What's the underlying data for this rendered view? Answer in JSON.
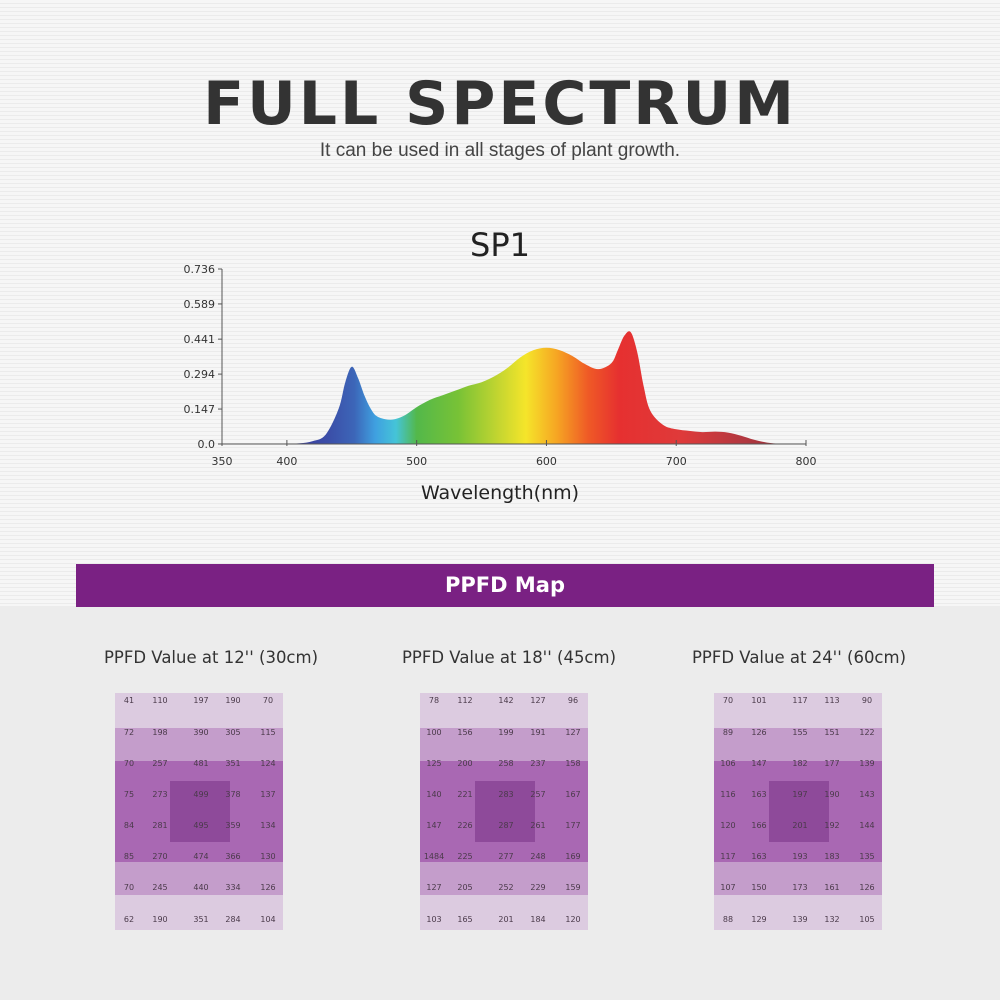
{
  "header": {
    "title": "FULL SPECTRUM",
    "subtitle": "It can be used in all stages of plant growth."
  },
  "colors": {
    "banner": "#7a2183",
    "band_light": "#dccbe0",
    "band_mid": "#c49dcb",
    "band_dark": "#a968b3",
    "center": "#8e4a9a"
  },
  "chart_data": {
    "type": "area",
    "title": "SP1",
    "xlabel": "Wavelength(nm)",
    "ylabel": "",
    "xlim": [
      350,
      800
    ],
    "ylim": [
      0,
      0.736
    ],
    "xticks": [
      "350",
      "400",
      "500",
      "600",
      "700",
      "800"
    ],
    "yticks": [
      "0.736",
      "0.589",
      "0.441",
      "0.294",
      "0.147",
      "0.0"
    ],
    "x": [
      400,
      410,
      420,
      430,
      440,
      445,
      450,
      455,
      460,
      465,
      470,
      480,
      490,
      500,
      510,
      520,
      530,
      540,
      550,
      560,
      570,
      580,
      590,
      600,
      610,
      620,
      630,
      640,
      650,
      655,
      660,
      665,
      670,
      675,
      680,
      690,
      700,
      710,
      720,
      730,
      740,
      750,
      760,
      770,
      780,
      790
    ],
    "y": [
      0.0,
      0.003,
      0.012,
      0.04,
      0.15,
      0.26,
      0.325,
      0.275,
      0.2,
      0.145,
      0.115,
      0.102,
      0.118,
      0.155,
      0.185,
      0.205,
      0.225,
      0.245,
      0.26,
      0.285,
      0.32,
      0.365,
      0.395,
      0.405,
      0.395,
      0.37,
      0.335,
      0.315,
      0.34,
      0.395,
      0.455,
      0.47,
      0.385,
      0.24,
      0.14,
      0.08,
      0.062,
      0.055,
      0.05,
      0.052,
      0.048,
      0.035,
      0.018,
      0.006,
      0.001,
      0.0
    ],
    "legend": "none",
    "grid": false
  },
  "ppfd": {
    "banner_label": "PPFD Map",
    "maps": [
      {
        "title": "PPFD Value at 12'' (30cm)",
        "rows": [
          [
            "41",
            "110",
            "197",
            "190",
            "70"
          ],
          [
            "72",
            "198",
            "390",
            "305",
            "115"
          ],
          [
            "70",
            "257",
            "481",
            "351",
            "124"
          ],
          [
            "75",
            "273",
            "499",
            "378",
            "137"
          ],
          [
            "84",
            "281",
            "495",
            "359",
            "134"
          ],
          [
            "85",
            "270",
            "474",
            "366",
            "130"
          ],
          [
            "70",
            "245",
            "440",
            "334",
            "126"
          ],
          [
            "62",
            "190",
            "351",
            "284",
            "104"
          ]
        ]
      },
      {
        "title": "PPFD Value at 18'' (45cm)",
        "rows": [
          [
            "78",
            "112",
            "142",
            "127",
            "96"
          ],
          [
            "100",
            "156",
            "199",
            "191",
            "127"
          ],
          [
            "125",
            "200",
            "258",
            "237",
            "158"
          ],
          [
            "140",
            "221",
            "283",
            "257",
            "167"
          ],
          [
            "147",
            "226",
            "287",
            "261",
            "177"
          ],
          [
            "1484",
            "225",
            "277",
            "248",
            "169"
          ],
          [
            "127",
            "205",
            "252",
            "229",
            "159"
          ],
          [
            "103",
            "165",
            "201",
            "184",
            "120"
          ]
        ]
      },
      {
        "title": "PPFD Value at 24'' (60cm)",
        "rows": [
          [
            "70",
            "101",
            "117",
            "113",
            "90"
          ],
          [
            "89",
            "126",
            "155",
            "151",
            "122"
          ],
          [
            "106",
            "147",
            "182",
            "177",
            "139"
          ],
          [
            "116",
            "163",
            "197",
            "190",
            "143"
          ],
          [
            "120",
            "166",
            "201",
            "192",
            "144"
          ],
          [
            "117",
            "163",
            "193",
            "183",
            "135"
          ],
          [
            "107",
            "150",
            "173",
            "161",
            "126"
          ],
          [
            "88",
            "129",
            "139",
            "132",
            "105"
          ]
        ]
      }
    ]
  }
}
